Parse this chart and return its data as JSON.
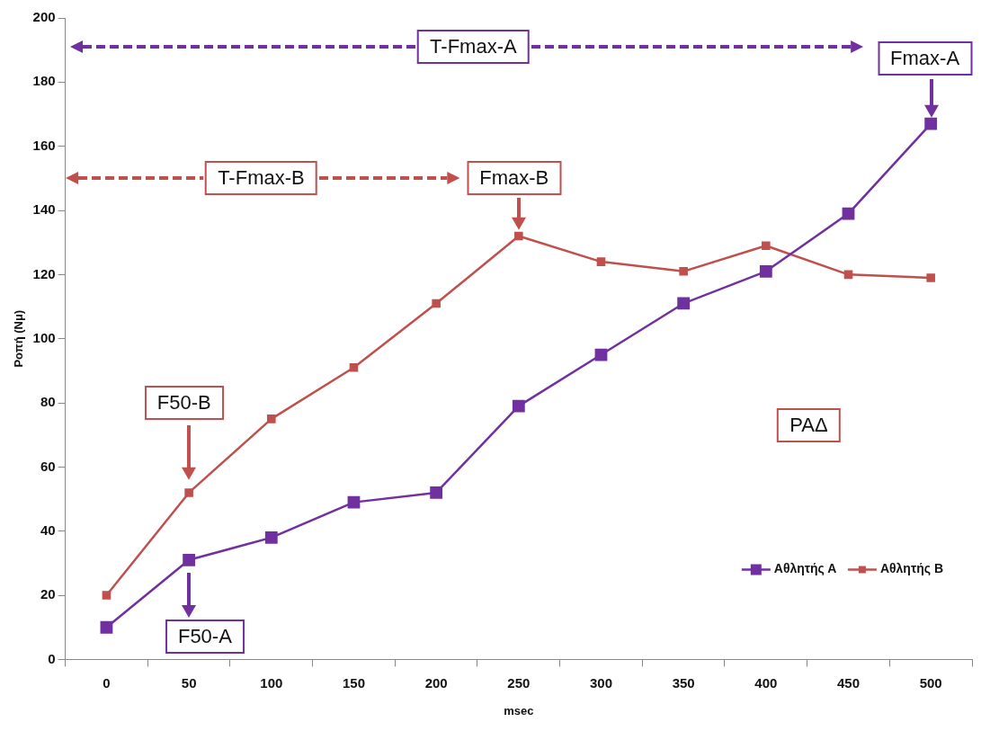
{
  "chart_data": {
    "type": "line",
    "xlabel": "msec",
    "ylabel": "Ροπή (Nμ)",
    "categories": [
      "0",
      "50",
      "100",
      "150",
      "200",
      "250",
      "300",
      "350",
      "400",
      "450",
      "500"
    ],
    "series": [
      {
        "name": "Αθλητής Α",
        "color": "#7030a0",
        "values": [
          10,
          31,
          38,
          49,
          52,
          79,
          95,
          111,
          121,
          139,
          167
        ]
      },
      {
        "name": "Αθλητής Β",
        "color": "#c0504d",
        "values": [
          20,
          52,
          75,
          91,
          111,
          132,
          124,
          121,
          129,
          120,
          119
        ]
      }
    ],
    "ylim": [
      0,
      200
    ],
    "yticks": [
      0,
      20,
      40,
      60,
      80,
      100,
      120,
      140,
      160,
      180,
      200
    ],
    "grid": false,
    "legend": "bottom right",
    "marker": "square",
    "line_style": "solid",
    "annotations": [
      "T-Fmax-A",
      "Fmax-A",
      "T-Fmax-B",
      "Fmax-B",
      "F50-B",
      "F50-A",
      "ΡΑΔ"
    ]
  }
}
